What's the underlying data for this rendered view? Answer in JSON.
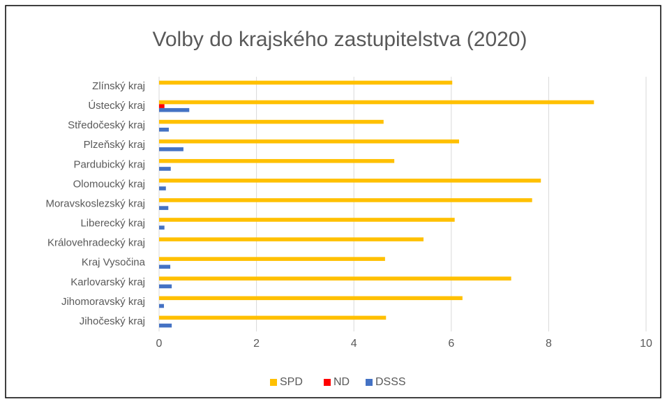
{
  "chart_data": {
    "type": "hbar",
    "title": "Volby do krajského zastupitelstva (2020)",
    "categories": [
      "Zlínský kraj",
      "Ústecký kraj",
      "Středočeský kraj",
      "Plzeňský kraj",
      "Pardubický kraj",
      "Olomoucký kraj",
      "Moravskoslezský kraj",
      "Liberecký kraj",
      "Královehradecký kraj",
      "Kraj Vysočina",
      "Karlovarský kraj",
      "Jihomoravský kraj",
      "Jihočeský kraj"
    ],
    "series": [
      {
        "name": "SPD",
        "color": "#ffc000",
        "values": [
          6.02,
          8.93,
          4.61,
          6.16,
          4.83,
          7.84,
          7.66,
          6.07,
          5.43,
          4.64,
          7.23,
          6.23,
          4.66
        ]
      },
      {
        "name": "ND",
        "color": "#ff0000",
        "values": [
          0,
          0.11,
          0,
          0,
          0,
          0,
          0,
          0,
          0,
          0,
          0,
          0,
          0
        ]
      },
      {
        "name": "DSSS",
        "color": "#4472c4",
        "values": [
          0,
          0.62,
          0.2,
          0.5,
          0.24,
          0.14,
          0.19,
          0.11,
          0,
          0.23,
          0.26,
          0.1,
          0.26
        ]
      }
    ],
    "xlim": [
      0,
      10
    ],
    "xticks": [
      0,
      2,
      4,
      6,
      8,
      10
    ],
    "grid": true,
    "legend": "bottom"
  }
}
